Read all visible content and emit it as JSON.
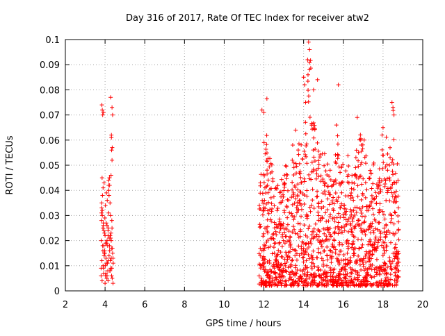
{
  "chart_data": {
    "type": "scatter",
    "title": "Day 316 of 2017, Rate Of TEC Index for receiver atw2",
    "xlabel": "GPS time / hours",
    "ylabel": "ROTI / TECUs",
    "xlim": [
      2,
      20
    ],
    "ylim": [
      0,
      0.1
    ],
    "xticks": [
      2,
      4,
      6,
      8,
      10,
      12,
      14,
      16,
      18,
      20
    ],
    "yticks": [
      0,
      0.01,
      0.02,
      0.03,
      0.04,
      0.05,
      0.06,
      0.07,
      0.08,
      0.09,
      0.1
    ],
    "xtick_labels": [
      "2",
      "4",
      "6",
      "8",
      "10",
      "12",
      "14",
      "16",
      "18",
      "20"
    ],
    "ytick_labels": [
      "0",
      "0.01",
      "0.02",
      "0.03",
      "0.04",
      "0.05",
      "0.06",
      "0.07",
      "0.08",
      "0.09",
      "0.1"
    ],
    "grid": true,
    "marker": "+",
    "color": "#ff0000",
    "series": [
      {
        "x": [
          3.8,
          3.84,
          3.88,
          3.92,
          3.96,
          4.0,
          4.04,
          4.08,
          4.12,
          4.16,
          4.2,
          4.24,
          4.28,
          4.32,
          4.36,
          4.4,
          3.82,
          3.86,
          3.9,
          3.94,
          3.98,
          4.02,
          4.06,
          4.1,
          4.14,
          4.18,
          4.22,
          4.26,
          4.3,
          4.34,
          4.38,
          3.83,
          3.87,
          3.91,
          3.95,
          3.99,
          4.03,
          4.07,
          4.11,
          4.15,
          4.19,
          4.23,
          4.27,
          4.31,
          4.35,
          3.85,
          3.93,
          4.01,
          4.09,
          4.17,
          4.25,
          4.33,
          4.41,
          3.81,
          3.89,
          3.97,
          4.05,
          4.13,
          4.21,
          4.29,
          4.37,
          3.83,
          3.91,
          3.99,
          4.07,
          4.15,
          4.23,
          4.31,
          3.86,
          3.94,
          4.02,
          4.1,
          4.18,
          4.26,
          4.34,
          3.85,
          3.9,
          3.95,
          4.3,
          4.35,
          4.33,
          4.36,
          4.32,
          4.2,
          4.25,
          4.22,
          4.18,
          3.88,
          3.92,
          3.84,
          3.86,
          4.38,
          4.35,
          4.28,
          4.32,
          3.82,
          3.89,
          4.0,
          4.15,
          4.4,
          3.8,
          4.1
        ],
        "y": [
          0.006,
          0.012,
          0.018,
          0.009,
          0.015,
          0.022,
          0.007,
          0.019,
          0.011,
          0.025,
          0.014,
          0.008,
          0.021,
          0.017,
          0.005,
          0.013,
          0.028,
          0.032,
          0.01,
          0.024,
          0.016,
          0.006,
          0.027,
          0.02,
          0.008,
          0.031,
          0.018,
          0.012,
          0.023,
          0.009,
          0.015,
          0.035,
          0.038,
          0.026,
          0.014,
          0.029,
          0.019,
          0.011,
          0.036,
          0.022,
          0.04,
          0.016,
          0.03,
          0.013,
          0.025,
          0.004,
          0.007,
          0.01,
          0.005,
          0.012,
          0.008,
          0.006,
          0.011,
          0.02,
          0.016,
          0.023,
          0.013,
          0.018,
          0.021,
          0.009,
          0.017,
          0.033,
          0.027,
          0.015,
          0.039,
          0.024,
          0.042,
          0.02,
          0.03,
          0.018,
          0.034,
          0.026,
          0.044,
          0.022,
          0.028,
          0.045,
          0.041,
          0.043,
          0.046,
          0.052,
          0.056,
          0.057,
          0.062,
          0.038,
          0.035,
          0.045,
          0.042,
          0.07,
          0.071,
          0.074,
          0.072,
          0.07,
          0.073,
          0.077,
          0.061,
          0.031,
          0.025,
          0.003,
          0.004,
          0.003,
          0.009,
          0.006
        ]
      }
    ]
  }
}
